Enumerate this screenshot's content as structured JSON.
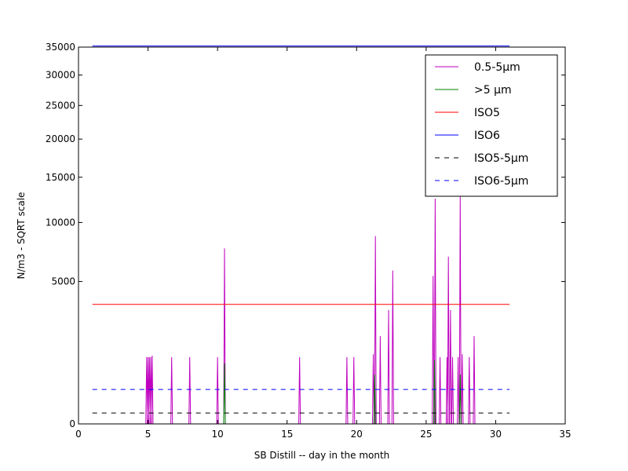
{
  "chart_data": {
    "type": "line",
    "xlabel": "SB Distill -- day in the month",
    "ylabel": "N/m3 - SQRT scale",
    "xlim": [
      0,
      35
    ],
    "ylim": [
      0,
      35000
    ],
    "y_scale": "sqrt",
    "x_ticks": [
      "0",
      "5",
      "10",
      "15",
      "20",
      "25",
      "30",
      "35"
    ],
    "y_ticks": [
      "0",
      "5000",
      "10000",
      "15000",
      "20000",
      "25000",
      "30000",
      "35000"
    ],
    "grid": false,
    "legend_position": "top-right",
    "series": [
      {
        "name": "0.5-5µm",
        "color": "#bf00bf",
        "style": "solid",
        "spikes": [
          [
            4.9,
            1100
          ],
          [
            5.0,
            1100
          ],
          [
            5.1,
            1100
          ],
          [
            5.2,
            1100
          ],
          [
            5.3,
            1150
          ],
          [
            6.7,
            1100
          ],
          [
            8.0,
            1100
          ],
          [
            10.0,
            1100
          ],
          [
            10.5,
            7600
          ],
          [
            15.9,
            1100
          ],
          [
            19.3,
            1100
          ],
          [
            19.8,
            1100
          ],
          [
            21.2,
            1200
          ],
          [
            21.35,
            8700
          ],
          [
            21.7,
            1900
          ],
          [
            22.3,
            3200
          ],
          [
            22.6,
            5800
          ],
          [
            25.5,
            5400
          ],
          [
            25.65,
            12500
          ],
          [
            26.0,
            1100
          ],
          [
            26.5,
            1100
          ],
          [
            26.6,
            6900
          ],
          [
            26.75,
            3200
          ],
          [
            26.9,
            1100
          ],
          [
            27.3,
            1100
          ],
          [
            27.45,
            13000
          ],
          [
            27.6,
            1200
          ],
          [
            28.1,
            1100
          ],
          [
            28.45,
            1900
          ]
        ]
      },
      {
        "name": ">5 µm",
        "color": "#007f00",
        "style": "solid",
        "spikes": [
          [
            10.5,
            900
          ],
          [
            21.3,
            600
          ],
          [
            25.6,
            1000
          ],
          [
            27.45,
            600
          ]
        ]
      },
      {
        "name": "ISO5",
        "color": "#ff0000",
        "style": "solid",
        "x": [
          1,
          31
        ],
        "y": [
          3520,
          3520
        ]
      },
      {
        "name": "ISO6",
        "color": "#0000ff",
        "style": "solid",
        "x": [
          1,
          31
        ],
        "y": [
          35200,
          35200
        ]
      },
      {
        "name": "ISO5-5µm",
        "color": "#000000",
        "style": "dashed",
        "x": [
          1,
          31
        ],
        "y": [
          29,
          29
        ]
      },
      {
        "name": "ISO6-5µm",
        "color": "#0000ff",
        "style": "dashed",
        "x": [
          1,
          31
        ],
        "y": [
          293,
          293
        ]
      }
    ]
  }
}
